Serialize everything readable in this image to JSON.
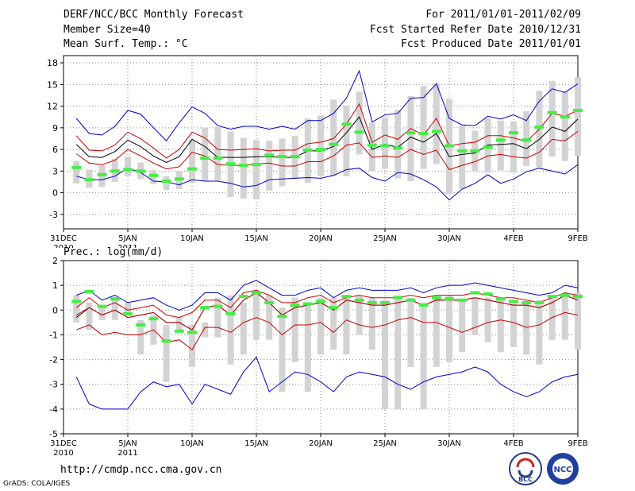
{
  "header": {
    "title": "DERF/NCC/BCC Monthly Forecast",
    "member_size": "Member Size=40",
    "variable": "Mean Surf. Temp.: °C",
    "period": "For 2011/01/01-2011/02/09",
    "started": "Fcst Started Refer Date 2010/12/31",
    "produced": "Fcst Produced Date 2011/01/01"
  },
  "footer": {
    "url": "http://cmdp.ncc.cma.gov.cn",
    "credit": "GrADS: COLA/IGES",
    "logo_bcc": "BCC",
    "logo_ncc": "NCC"
  },
  "colors": {
    "envelope": "#0000cc",
    "spread": "#cc0000",
    "mean": "#000000",
    "box": "#d3d3d3",
    "marker": "#44ee44",
    "grid": "#888888"
  },
  "chart_data": [
    {
      "type": "box-line",
      "title": "Mean Surf. Temp.: °C",
      "ylim": [
        -5,
        19
      ],
      "yticks": [
        -3,
        0,
        3,
        6,
        9,
        12,
        15,
        18
      ],
      "xtick_labels": [
        {
          "day": 0,
          "label": "31DEC",
          "sub": "2010"
        },
        {
          "day": 5,
          "label": "5JAN",
          "sub": "2011"
        },
        {
          "day": 10,
          "label": "10JAN"
        },
        {
          "day": 15,
          "label": "15JAN"
        },
        {
          "day": 20,
          "label": "20JAN"
        },
        {
          "day": 25,
          "label": "25JAN"
        },
        {
          "day": 30,
          "label": "30JAN"
        },
        {
          "day": 35,
          "label": "4FEB"
        },
        {
          "day": 40,
          "label": "9FEB"
        }
      ],
      "days": [
        1,
        2,
        3,
        4,
        5,
        6,
        7,
        8,
        9,
        10,
        11,
        12,
        13,
        14,
        15,
        16,
        17,
        18,
        19,
        20,
        21,
        22,
        23,
        24,
        25,
        26,
        27,
        28,
        29,
        30,
        31,
        32,
        33,
        34,
        35,
        36,
        37,
        38,
        39,
        40
      ],
      "series": [
        {
          "name": "max",
          "values": [
            10.3,
            8.2,
            8.0,
            9.2,
            11.4,
            10.9,
            9.0,
            7.2,
            9.7,
            11.9,
            11.0,
            9.3,
            8.8,
            9.2,
            9.2,
            8.8,
            9.2,
            8.8,
            10.0,
            10.0,
            11.0,
            13.1,
            16.9,
            9.8,
            10.8,
            11.0,
            13.1,
            13.2,
            15.1,
            10.3,
            9.4,
            9.3,
            10.6,
            10.2,
            10.8,
            10.0,
            12.7,
            14.4,
            13.9,
            15.1
          ]
        },
        {
          "name": "upper",
          "values": [
            7.9,
            5.9,
            5.8,
            6.6,
            8.4,
            7.5,
            6.2,
            4.8,
            6.0,
            8.4,
            7.6,
            6.0,
            5.9,
            6.0,
            6.1,
            5.8,
            5.9,
            5.9,
            6.8,
            7.0,
            7.5,
            9.5,
            12.3,
            7.0,
            8.0,
            7.4,
            8.9,
            8.0,
            10.3,
            6.5,
            6.8,
            7.0,
            7.9,
            7.9,
            7.6,
            7.1,
            8.8,
            11.0,
            10.6,
            11.4
          ]
        },
        {
          "name": "mean",
          "values": [
            6.7,
            5.0,
            4.9,
            5.7,
            7.3,
            6.4,
            5.1,
            4.2,
            5.0,
            7.4,
            6.4,
            4.9,
            4.9,
            4.9,
            5.0,
            5.0,
            4.9,
            4.9,
            5.8,
            5.8,
            6.4,
            8.3,
            10.5,
            6.0,
            6.7,
            6.3,
            7.7,
            7.0,
            8.2,
            5.0,
            5.3,
            5.5,
            6.6,
            6.7,
            6.8,
            6.1,
            7.4,
            9.1,
            8.5,
            10.2
          ]
        },
        {
          "name": "lower",
          "values": [
            5.4,
            4.1,
            3.9,
            4.5,
            6.0,
            5.1,
            4.1,
            3.3,
            3.6,
            5.6,
            5.1,
            3.9,
            3.8,
            3.8,
            4.0,
            4.1,
            3.7,
            3.7,
            4.3,
            4.3,
            5.1,
            6.6,
            6.9,
            4.9,
            5.1,
            4.9,
            6.0,
            5.3,
            5.9,
            3.2,
            3.8,
            4.3,
            5.1,
            5.3,
            5.0,
            4.8,
            5.6,
            7.4,
            7.2,
            8.5
          ]
        },
        {
          "name": "min",
          "values": [
            2.3,
            1.8,
            1.8,
            2.3,
            3.4,
            2.8,
            1.6,
            1.5,
            1.1,
            1.8,
            1.6,
            1.6,
            1.3,
            0.8,
            1.0,
            1.8,
            1.9,
            2.0,
            2.1,
            2.0,
            2.4,
            3.2,
            3.4,
            2.1,
            1.6,
            2.8,
            2.6,
            1.8,
            0.8,
            -1.0,
            0.5,
            1.3,
            2.5,
            1.3,
            1.9,
            2.9,
            3.4,
            3.0,
            2.6,
            3.9
          ]
        }
      ],
      "boxes": [
        [
          1.3,
          4.4
        ],
        [
          0.7,
          3.2
        ],
        [
          0.8,
          3.8
        ],
        [
          1.5,
          4.7
        ],
        [
          2.3,
          5.0
        ],
        [
          1.9,
          4.2
        ],
        [
          1.2,
          3.2
        ],
        [
          0.4,
          2.3
        ],
        [
          0.5,
          3.0
        ],
        [
          1.4,
          7.3
        ],
        [
          1.6,
          9.0
        ],
        [
          1.7,
          9.1
        ],
        [
          -0.6,
          8.5
        ],
        [
          -0.8,
          7.6
        ],
        [
          -0.9,
          7.3
        ],
        [
          0.3,
          7.2
        ],
        [
          0.9,
          7.5
        ],
        [
          1.9,
          7.9
        ],
        [
          1.4,
          10.3
        ],
        [
          2.3,
          10.7
        ],
        [
          2.3,
          12.9
        ],
        [
          2.3,
          12.1
        ],
        [
          5.3,
          14.0
        ],
        [
          3.0,
          9.7
        ],
        [
          3.3,
          10.4
        ],
        [
          2.0,
          11.5
        ],
        [
          1.6,
          13.4
        ],
        [
          3.3,
          14.8
        ],
        [
          4.0,
          15.2
        ],
        [
          -0.2,
          13.0
        ],
        [
          0.5,
          9.3
        ],
        [
          3.0,
          8.6
        ],
        [
          2.8,
          10.3
        ],
        [
          3.1,
          10.0
        ],
        [
          2.8,
          9.9
        ],
        [
          3.7,
          11.3
        ],
        [
          3.5,
          14.1
        ],
        [
          5.0,
          15.5
        ],
        [
          4.4,
          14.0
        ],
        [
          5.1,
          16.0
        ]
      ],
      "markers": [
        3.5,
        1.8,
        2.5,
        3.0,
        3.2,
        3.0,
        2.4,
        1.6,
        1.9,
        3.3,
        4.8,
        4.8,
        4.0,
        3.8,
        3.9,
        5.2,
        5.0,
        5.0,
        5.9,
        6.0,
        6.7,
        9.5,
        8.4,
        6.6,
        6.5,
        6.2,
        8.3,
        8.2,
        8.5,
        6.5,
        5.8,
        5.8,
        6.3,
        7.3,
        8.3,
        7.3,
        9.1,
        11.1,
        10.5,
        11.4
      ]
    },
    {
      "type": "box-line",
      "title": "Prec.: log(mm/d)",
      "ylim": [
        -5,
        2
      ],
      "yticks": [
        -5,
        -4,
        -3,
        -2,
        -1,
        0,
        1,
        2
      ],
      "xtick_labels": [
        {
          "day": 0,
          "label": "31DEC",
          "sub": "2010"
        },
        {
          "day": 5,
          "label": "5JAN",
          "sub": "2011"
        },
        {
          "day": 10,
          "label": "10JAN"
        },
        {
          "day": 15,
          "label": "15JAN"
        },
        {
          "day": 20,
          "label": "20JAN"
        },
        {
          "day": 25,
          "label": "25JAN"
        },
        {
          "day": 30,
          "label": "30JAN"
        },
        {
          "day": 35,
          "label": "4FEB"
        },
        {
          "day": 40,
          "label": "9FEB"
        }
      ],
      "days": [
        1,
        2,
        3,
        4,
        5,
        6,
        7,
        8,
        9,
        10,
        11,
        12,
        13,
        14,
        15,
        16,
        17,
        18,
        19,
        20,
        21,
        22,
        23,
        24,
        25,
        26,
        27,
        28,
        29,
        30,
        31,
        32,
        33,
        34,
        35,
        36,
        37,
        38,
        39,
        40
      ],
      "series": [
        {
          "name": "max",
          "values": [
            0.6,
            0.8,
            0.4,
            0.6,
            0.3,
            0.4,
            0.5,
            0.2,
            0.0,
            0.2,
            0.7,
            0.7,
            0.4,
            1.0,
            1.2,
            0.9,
            0.6,
            0.6,
            0.8,
            0.9,
            0.5,
            0.8,
            0.9,
            0.8,
            0.8,
            0.8,
            0.9,
            0.7,
            0.9,
            1.0,
            1.0,
            1.1,
            1.0,
            0.9,
            0.8,
            0.7,
            0.6,
            0.7,
            1.0,
            0.9
          ]
        },
        {
          "name": "upper",
          "values": [
            0.1,
            0.5,
            0.1,
            0.3,
            0.0,
            0.1,
            0.2,
            -0.2,
            -0.3,
            -0.1,
            0.4,
            0.4,
            0.1,
            0.7,
            0.8,
            0.6,
            0.3,
            0.3,
            0.5,
            0.6,
            0.3,
            0.5,
            0.6,
            0.5,
            0.5,
            0.5,
            0.6,
            0.5,
            0.6,
            0.6,
            0.6,
            0.7,
            0.6,
            0.5,
            0.5,
            0.4,
            0.3,
            0.5,
            0.7,
            0.6
          ]
        },
        {
          "name": "mean",
          "values": [
            -0.3,
            0.1,
            -0.2,
            0.0,
            -0.3,
            -0.2,
            -0.1,
            -0.5,
            -0.5,
            -0.8,
            0.1,
            0.2,
            -0.2,
            0.4,
            0.7,
            0.3,
            -0.2,
            0.1,
            0.2,
            0.3,
            0.0,
            0.4,
            0.3,
            0.2,
            0.2,
            0.3,
            0.4,
            0.2,
            0.4,
            0.4,
            0.4,
            0.5,
            0.4,
            0.3,
            0.2,
            0.2,
            0.1,
            0.3,
            0.6,
            0.4
          ]
        },
        {
          "name": "lower",
          "values": [
            -0.8,
            -0.6,
            -1.0,
            -0.9,
            -1.0,
            -1.0,
            -0.8,
            -1.3,
            -1.2,
            -1.6,
            -0.7,
            -0.7,
            -0.9,
            -0.5,
            -0.3,
            -0.5,
            -1.0,
            -0.6,
            -0.6,
            -0.5,
            -0.9,
            -0.4,
            -0.6,
            -0.7,
            -0.6,
            -0.4,
            -0.3,
            -0.5,
            -0.5,
            -0.7,
            -0.9,
            -0.7,
            -0.5,
            -0.4,
            -0.5,
            -0.7,
            -0.6,
            -0.3,
            -0.1,
            -0.2
          ]
        },
        {
          "name": "min",
          "values": [
            -2.7,
            -3.8,
            -4.0,
            -4.0,
            -4.0,
            -3.3,
            -2.9,
            -3.1,
            -3.0,
            -3.8,
            -3.0,
            -3.2,
            -3.4,
            -2.5,
            -1.9,
            -3.3,
            -2.9,
            -2.5,
            -2.6,
            -2.9,
            -3.3,
            -2.7,
            -2.5,
            -2.6,
            -2.7,
            -3.0,
            -3.2,
            -2.9,
            -2.7,
            -2.6,
            -2.5,
            -2.3,
            -2.5,
            -3.0,
            -3.3,
            -3.5,
            -3.3,
            -2.9,
            -2.7,
            -2.6
          ]
        },
        {
          "name": "secondary",
          "values": [
            -0.2,
            0.1,
            -0.2,
            0.0,
            -0.3,
            -0.2,
            -0.1,
            -0.5,
            -0.5,
            -0.8,
            0.1,
            0.2,
            -0.2,
            0.4,
            0.7,
            0.3,
            -0.2,
            0.1,
            0.2,
            0.3,
            0.0,
            0.4,
            0.3,
            0.2,
            0.2,
            0.3,
            0.4,
            0.2,
            0.4,
            0.4,
            0.4,
            0.5,
            0.4,
            0.3,
            0.2,
            0.2,
            0.1,
            0.3,
            0.6,
            0.4
          ]
        }
      ],
      "boxes": [
        [
          -0.5,
          0.6
        ],
        [
          -0.8,
          0.3
        ],
        [
          -0.4,
          0.2
        ],
        [
          -0.4,
          0.5
        ],
        [
          -0.2,
          0.3
        ],
        [
          -1.8,
          -0.4
        ],
        [
          -1.4,
          -0.2
        ],
        [
          -2.9,
          -0.6
        ],
        [
          -0.9,
          -0.3
        ],
        [
          -2.3,
          -0.6
        ],
        [
          -1.1,
          -0.5
        ],
        [
          -1.1,
          0.5
        ],
        [
          -2.2,
          0.6
        ],
        [
          -1.8,
          0.3
        ],
        [
          -1.2,
          0.8
        ],
        [
          -1.2,
          0.6
        ],
        [
          -3.3,
          0.1
        ],
        [
          -2.1,
          0.5
        ],
        [
          -3.3,
          0.3
        ],
        [
          -1.8,
          0.5
        ],
        [
          -1.6,
          0.5
        ],
        [
          -1.8,
          0.6
        ],
        [
          -1.0,
          0.6
        ],
        [
          -1.6,
          0.5
        ],
        [
          -4.0,
          0.4
        ],
        [
          -4.0,
          0.6
        ],
        [
          -2.3,
          0.5
        ],
        [
          -4.0,
          0.3
        ],
        [
          -2.3,
          0.5
        ],
        [
          -2.1,
          0.6
        ],
        [
          -1.7,
          0.4
        ],
        [
          -1.0,
          0.5
        ],
        [
          -1.3,
          0.5
        ],
        [
          -1.7,
          0.4
        ],
        [
          -1.5,
          0.4
        ],
        [
          -1.8,
          0.3
        ],
        [
          -2.2,
          0.4
        ],
        [
          -1.2,
          0.5
        ],
        [
          -1.2,
          0.7
        ],
        [
          -1.6,
          0.7
        ]
      ],
      "markers": [
        0.35,
        0.75,
        0.15,
        0.45,
        -0.15,
        -0.6,
        -0.35,
        -1.25,
        -0.85,
        -0.9,
        0.1,
        0.15,
        -0.15,
        0.55,
        0.7,
        0.3,
        -0.25,
        0.2,
        0.25,
        0.35,
        0.1,
        0.55,
        0.4,
        0.3,
        0.3,
        0.5,
        0.4,
        0.2,
        0.5,
        0.45,
        0.4,
        0.7,
        0.65,
        0.45,
        0.35,
        0.3,
        0.3,
        0.55,
        0.6,
        0.55
      ]
    }
  ]
}
